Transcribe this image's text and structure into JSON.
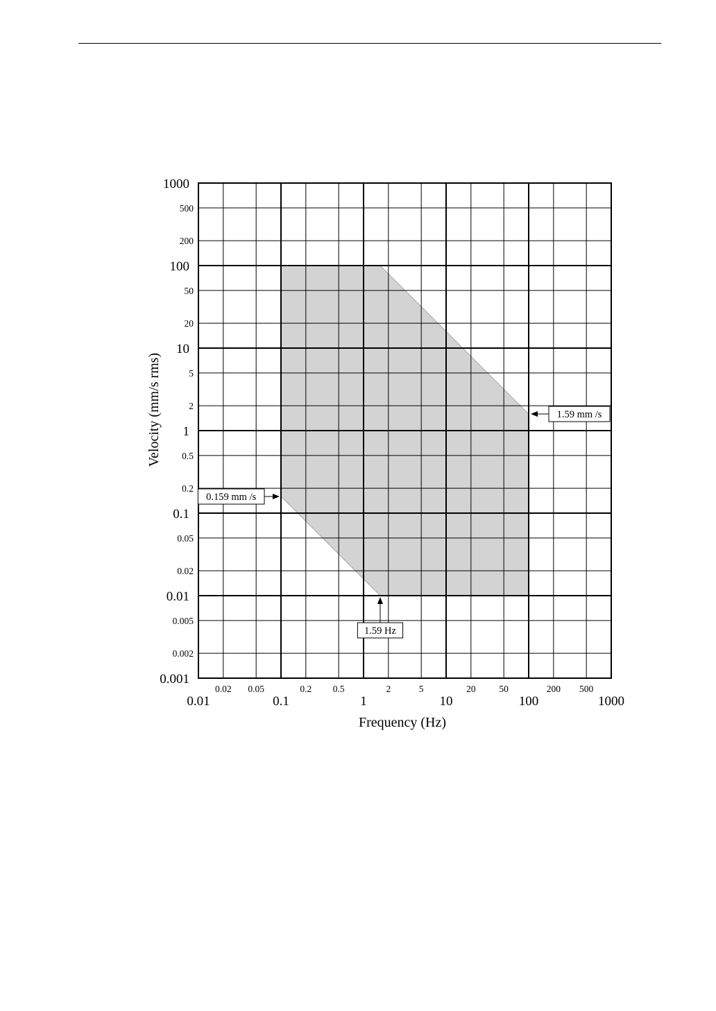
{
  "chart_data": {
    "type": "area",
    "title": "",
    "xlabel": "Frequency (Hz)",
    "ylabel": "Velocity (mm/s rms)",
    "xscale": "log",
    "yscale": "log",
    "xlim": [
      0.01,
      1000
    ],
    "ylim": [
      0.001,
      1000
    ],
    "grid": true,
    "x_ticks_major": [
      {
        "value": 0.01,
        "label": "0.01"
      },
      {
        "value": 0.1,
        "label": "0.1"
      },
      {
        "value": 1,
        "label": "1"
      },
      {
        "value": 10,
        "label": "10"
      },
      {
        "value": 100,
        "label": "100"
      },
      {
        "value": 1000,
        "label": "1000"
      }
    ],
    "x_ticks_minor": [
      {
        "value": 0.02,
        "label": "0.02"
      },
      {
        "value": 0.05,
        "label": "0.05"
      },
      {
        "value": 0.2,
        "label": "0.2"
      },
      {
        "value": 0.5,
        "label": "0.5"
      },
      {
        "value": 2,
        "label": "2"
      },
      {
        "value": 5,
        "label": "5"
      },
      {
        "value": 20,
        "label": "20"
      },
      {
        "value": 50,
        "label": "50"
      },
      {
        "value": 200,
        "label": "200"
      },
      {
        "value": 500,
        "label": "500"
      }
    ],
    "y_ticks_major": [
      {
        "value": 0.001,
        "label": "0.001"
      },
      {
        "value": 0.01,
        "label": "0.01"
      },
      {
        "value": 0.1,
        "label": "0.1"
      },
      {
        "value": 1,
        "label": "1"
      },
      {
        "value": 10,
        "label": "10"
      },
      {
        "value": 100,
        "label": "100"
      },
      {
        "value": 1000,
        "label": "1000"
      }
    ],
    "y_ticks_minor": [
      {
        "value": 0.002,
        "label": "0.002"
      },
      {
        "value": 0.005,
        "label": "0.005"
      },
      {
        "value": 0.02,
        "label": "0.02"
      },
      {
        "value": 0.05,
        "label": "0.05"
      },
      {
        "value": 0.2,
        "label": "0.2"
      },
      {
        "value": 0.5,
        "label": "0.5"
      },
      {
        "value": 2,
        "label": "2"
      },
      {
        "value": 5,
        "label": "5"
      },
      {
        "value": 20,
        "label": "20"
      },
      {
        "value": 50,
        "label": "50"
      },
      {
        "value": 200,
        "label": "200"
      },
      {
        "value": 500,
        "label": "500"
      }
    ],
    "region": {
      "fill": "#d3d3d3",
      "vertices": [
        {
          "x": 0.1,
          "y": 100
        },
        {
          "x": 1.59,
          "y": 100
        },
        {
          "x": 100,
          "y": 1.59
        },
        {
          "x": 100,
          "y": 0.01
        },
        {
          "x": 1.59,
          "y": 0.01
        },
        {
          "x": 0.1,
          "y": 0.159
        }
      ]
    },
    "annotations": [
      {
        "text": "1.59 mm /s",
        "x": 100,
        "y": 1.59,
        "side": "right"
      },
      {
        "text": "0.159 mm /s",
        "x": 0.1,
        "y": 0.159,
        "side": "left"
      },
      {
        "text": "1.59 Hz",
        "x": 1.59,
        "y": 0.01,
        "side": "below"
      }
    ]
  }
}
